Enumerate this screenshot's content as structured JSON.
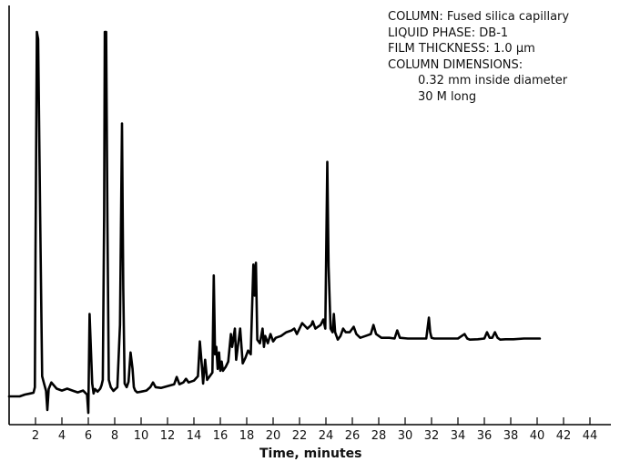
{
  "annotations": {
    "column": "COLUMN: Fused silica capillary",
    "liquid_phase": "LIQUID PHASE: DB-1",
    "film_thickness": "FILM THICKNESS: 1.0 μm",
    "dimensions_header": "COLUMN DIMENSIONS:",
    "diameter": "0.32 mm inside diameter",
    "length": "30 M long"
  },
  "chart_data": {
    "type": "line",
    "title": "",
    "xlabel": "Time, minutes",
    "ylabel": "",
    "xlim": [
      0,
      46
    ],
    "ylim": [
      0,
      100
    ],
    "x_ticks": [
      2,
      4,
      6,
      8,
      10,
      12,
      14,
      16,
      18,
      20,
      22,
      24,
      26,
      28,
      30,
      32,
      34,
      36,
      38,
      40,
      42,
      44
    ],
    "grid": false,
    "color": "#000000",
    "series": [
      {
        "name": "",
        "x": [
          0.0,
          0.8,
          1.2,
          1.6,
          1.85,
          1.95,
          2.0,
          2.1,
          2.2,
          2.35,
          2.5,
          2.65,
          2.8,
          2.9,
          3.0,
          3.2,
          3.6,
          4.0,
          4.4,
          4.8,
          5.2,
          5.6,
          5.9,
          6.0,
          6.1,
          6.2,
          6.3,
          6.4,
          6.5,
          6.7,
          6.9,
          7.0,
          7.1,
          7.2,
          7.25,
          7.35,
          7.45,
          7.55,
          7.7,
          7.9,
          8.2,
          8.4,
          8.55,
          8.65,
          8.75,
          8.9,
          9.05,
          9.2,
          9.35,
          9.45,
          9.55,
          9.7,
          10.0,
          10.4,
          10.7,
          10.9,
          11.1,
          11.5,
          12.0,
          12.5,
          12.7,
          12.9,
          13.2,
          13.4,
          13.6,
          14.0,
          14.3,
          14.45,
          14.6,
          14.7,
          14.85,
          15.0,
          15.2,
          15.4,
          15.5,
          15.6,
          15.7,
          15.8,
          15.9,
          16.0,
          16.1,
          16.2,
          16.4,
          16.6,
          16.8,
          16.9,
          17.1,
          17.2,
          17.3,
          17.5,
          17.7,
          17.9,
          18.1,
          18.3,
          18.5,
          18.6,
          18.7,
          18.8,
          18.9,
          19.0,
          19.2,
          19.3,
          19.4,
          19.6,
          19.8,
          20.0,
          20.2,
          20.6,
          21.0,
          21.4,
          21.6,
          21.8,
          22.2,
          22.6,
          22.9,
          23.0,
          23.2,
          23.6,
          23.8,
          23.95,
          24.1,
          24.2,
          24.35,
          24.5,
          24.6,
          24.7,
          24.9,
          25.1,
          25.3,
          25.5,
          25.8,
          26.1,
          26.3,
          26.6,
          27.0,
          27.4,
          27.6,
          27.8,
          28.2,
          28.8,
          29.2,
          29.4,
          29.6,
          30.2,
          31.0,
          31.6,
          31.8,
          31.9,
          32.0,
          32.2,
          32.6,
          33.2,
          34.0,
          34.5,
          34.7,
          34.9,
          35.5,
          36.0,
          36.2,
          36.4,
          36.6,
          36.8,
          37.0,
          37.2,
          37.6,
          38.2,
          39.0,
          40.2
        ],
        "y": [
          0.5,
          0.5,
          1.0,
          1.3,
          1.5,
          3.0,
          40.0,
          100.0,
          98.0,
          50.0,
          6.0,
          4.0,
          2.0,
          -3.2,
          2.5,
          4.3,
          2.6,
          2.1,
          2.6,
          2.1,
          1.6,
          2.1,
          1.0,
          -4.0,
          23.0,
          13.0,
          4.0,
          1.3,
          2.5,
          1.8,
          2.6,
          3.5,
          5.0,
          50.0,
          100.0,
          100.0,
          48.0,
          5.0,
          3.0,
          2.0,
          3.0,
          20.0,
          75.0,
          30.0,
          4.0,
          3.0,
          4.5,
          12.5,
          8.0,
          3.0,
          2.1,
          1.6,
          1.8,
          2.1,
          3.0,
          4.3,
          3.0,
          2.8,
          3.3,
          3.8,
          5.8,
          3.8,
          4.3,
          5.3,
          4.3,
          4.8,
          6.0,
          15.5,
          9.0,
          4.0,
          10.5,
          5.0,
          6.0,
          7.0,
          33.5,
          12.0,
          14.0,
          8.0,
          12.5,
          7.5,
          10.0,
          7.5,
          8.5,
          10.0,
          17.5,
          14.0,
          19.0,
          10.5,
          13.5,
          19.0,
          9.5,
          11.0,
          13.0,
          12.0,
          36.5,
          28.0,
          37.0,
          16.0,
          15.5,
          15.0,
          19.0,
          14.0,
          17.0,
          15.0,
          17.5,
          15.5,
          16.5,
          17.0,
          18.0,
          18.5,
          19.0,
          17.5,
          20.5,
          19.0,
          20.0,
          21.0,
          19.0,
          20.0,
          21.5,
          19.0,
          64.5,
          36.0,
          19.0,
          18.0,
          23.0,
          18.0,
          16.0,
          17.0,
          19.0,
          18.0,
          18.0,
          19.5,
          17.5,
          16.5,
          17.0,
          17.5,
          20.0,
          17.5,
          16.5,
          16.5,
          16.3,
          18.5,
          16.5,
          16.3,
          16.3,
          16.3,
          22.0,
          18.0,
          16.5,
          16.3,
          16.3,
          16.3,
          16.3,
          17.5,
          16.3,
          16.0,
          16.1,
          16.3,
          18.0,
          16.5,
          16.5,
          18.0,
          16.5,
          16.0,
          16.1,
          16.1,
          16.3,
          16.3
        ]
      }
    ]
  }
}
